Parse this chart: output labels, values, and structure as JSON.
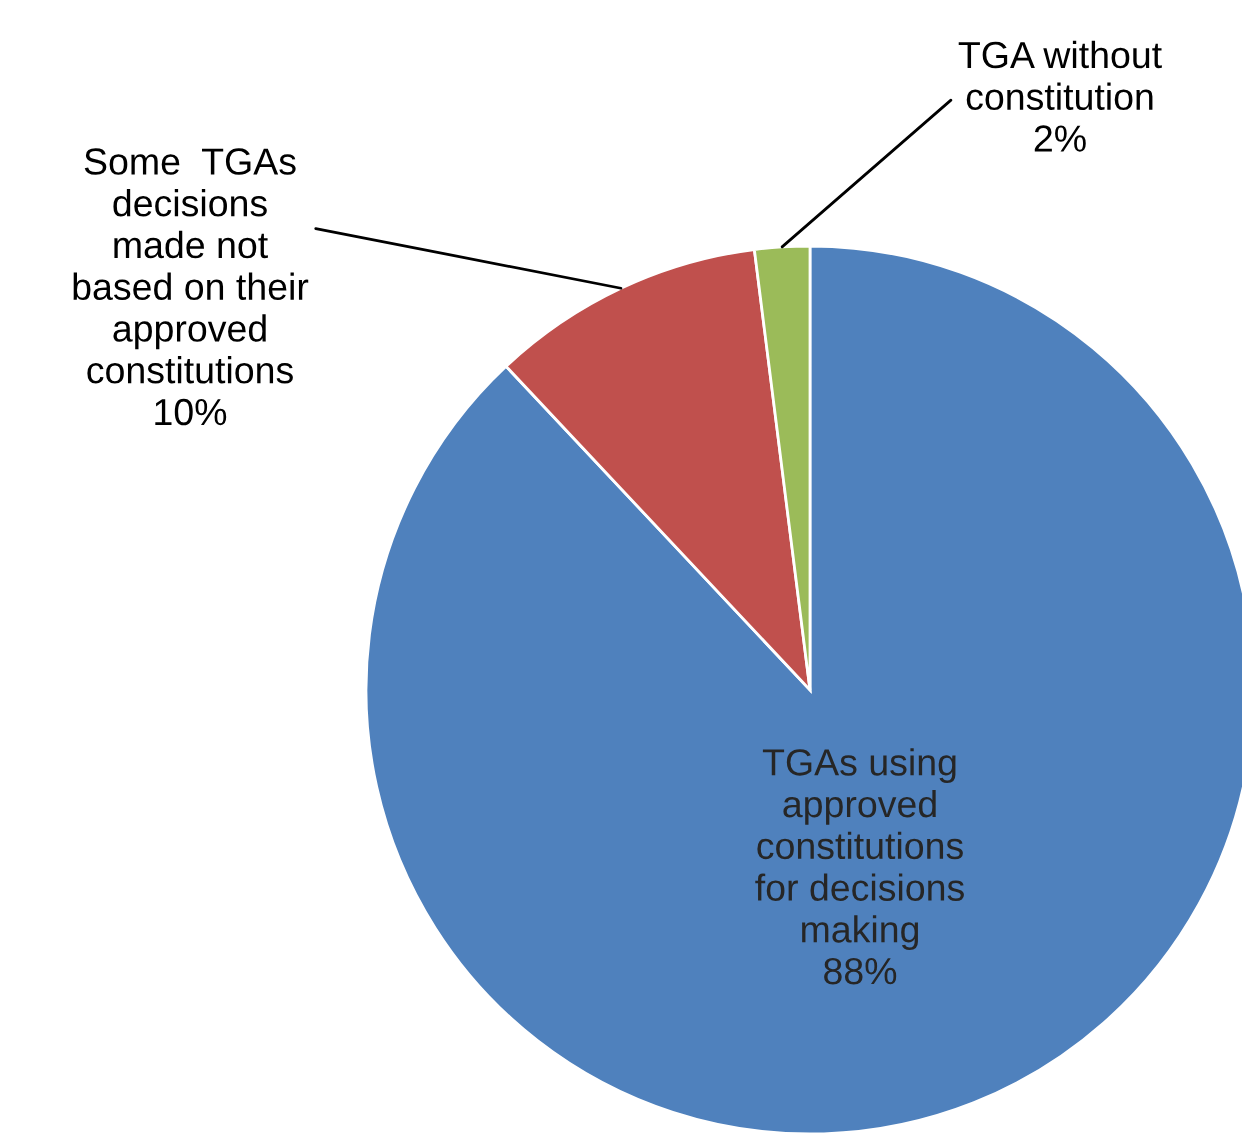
{
  "chart_data": {
    "type": "pie",
    "categories": [
      "TGAs using\napproved\nconstitutions\nfor decisions\nmaking",
      "Some  TGAs\ndecisions\nmade not\nbased on their\napproved\nconstitutions",
      "TGA without\nconstitution"
    ],
    "values": [
      88,
      10,
      2
    ],
    "value_labels": [
      "88%",
      "10%",
      "2%"
    ],
    "colors": [
      "#4f81bd",
      "#c0504d",
      "#9bbb59"
    ],
    "legend": false
  }
}
